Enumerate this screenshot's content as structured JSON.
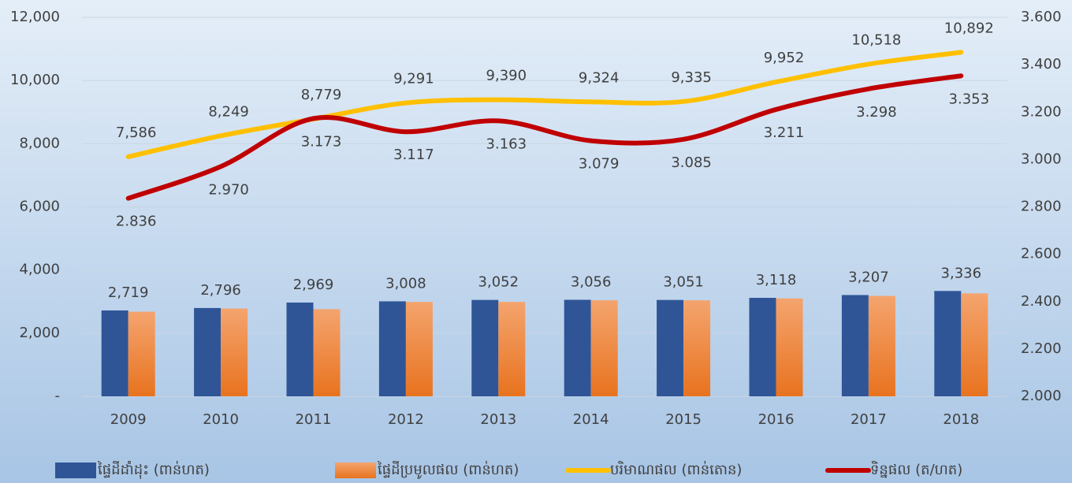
{
  "chart_data": {
    "type": "bar_line",
    "categories": [
      "2009",
      "2010",
      "2011",
      "2012",
      "2013",
      "2014",
      "2015",
      "2016",
      "2017",
      "2018"
    ],
    "series": [
      {
        "name": "ផ្ទៃដីដាំដុះ (ពាន់ហត)",
        "type": "bar",
        "color": "#2f5597",
        "values": [
          2719,
          2796,
          2969,
          3008,
          3052,
          3056,
          3051,
          3118,
          3207,
          3336
        ],
        "value_labels": [
          "2,719",
          "2,796",
          "2,969",
          "3,008",
          "3,052",
          "3,056",
          "3,051",
          "3,118",
          "3,207",
          "3,336"
        ]
      },
      {
        "name": "ផ្ទៃដីប្រមូលផល (ពាន់ហត)",
        "type": "bar",
        "color": "#ed7d31",
        "values": [
          2680,
          2780,
          2760,
          2990,
          2990,
          3040,
          3040,
          3100,
          3180,
          3260
        ]
      },
      {
        "name": "បរិមាណផល (ពាន់តោន)",
        "type": "line",
        "color": "#ffc000",
        "values": [
          7586,
          8249,
          8779,
          9291,
          9390,
          9324,
          9335,
          9952,
          10518,
          10892
        ],
        "value_labels": [
          "7,586",
          "8,249",
          "8,779",
          "9,291",
          "9,390",
          "9,324",
          "9,335",
          "9,952",
          "10,518",
          "10,892"
        ]
      },
      {
        "name": "ទិន្នផល (ត/ហត)",
        "type": "line",
        "axis": "y2",
        "color": "#c00000",
        "values": [
          2.836,
          2.97,
          3.173,
          3.117,
          3.163,
          3.079,
          3.085,
          3.211,
          3.298,
          3.353
        ],
        "value_labels": [
          "2.836",
          "2.970",
          "3.173",
          "3.117",
          "3.163",
          "3.079",
          "3.085",
          "3.211",
          "3.298",
          "3.353"
        ]
      }
    ],
    "ylim": [
      0,
      12000
    ],
    "yticks": [
      {
        "value": 0,
        "label": "-"
      },
      {
        "value": 2000,
        "label": "2,000"
      },
      {
        "value": 4000,
        "label": "4,000"
      },
      {
        "value": 6000,
        "label": "6,000"
      },
      {
        "value": 8000,
        "label": "8,000"
      },
      {
        "value": 10000,
        "label": "10,000"
      },
      {
        "value": 12000,
        "label": "12,000"
      }
    ],
    "y2lim": [
      2,
      3.6
    ],
    "y2ticks": [
      {
        "value": 2,
        "label": "2.000"
      },
      {
        "value": 2.2,
        "label": "2.200"
      },
      {
        "value": 2.4,
        "label": "2.400"
      },
      {
        "value": 2.6,
        "label": "2.600"
      },
      {
        "value": 2.8,
        "label": "2.800"
      },
      {
        "value": 3,
        "label": "3.000"
      },
      {
        "value": 3.2,
        "label": "3.200"
      },
      {
        "value": 3.4,
        "label": "3.400"
      },
      {
        "value": 3.6,
        "label": "3.600"
      }
    ],
    "grid": true,
    "legend": "bottom"
  }
}
